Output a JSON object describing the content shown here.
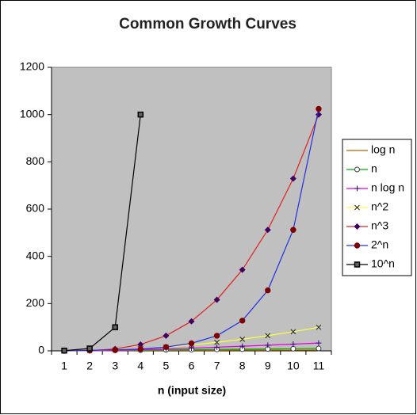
{
  "chart_data": {
    "type": "line",
    "title": "Common Growth Curves",
    "x_label": "n (input size)",
    "categories": [
      "1",
      "2",
      "3",
      "4",
      "5",
      "6",
      "7",
      "8",
      "9",
      "10",
      "11"
    ],
    "ylim": [
      0,
      1200
    ],
    "yticks": [
      0,
      200,
      400,
      600,
      800,
      1000,
      1200
    ],
    "plot_background": "#c0c0c0",
    "legend": "right",
    "series": [
      {
        "name": "log n",
        "color": "#c06000",
        "marker": "none",
        "marker_color": "#c06000",
        "values": [
          null,
          0,
          1,
          1.58,
          2,
          2.32,
          2.58,
          2.81,
          3,
          3.17,
          3.32
        ]
      },
      {
        "name": "n",
        "color": "#00b000",
        "marker": "circle-open",
        "marker_color": "#404040",
        "values": [
          0,
          1,
          2,
          3,
          4,
          5,
          6,
          7,
          8,
          9,
          10
        ]
      },
      {
        "name": "n log n",
        "color": "#e000e0",
        "marker": "plus",
        "marker_color": "#400080",
        "values": [
          null,
          0,
          2,
          4.75,
          8,
          11.6,
          15.5,
          19.7,
          24,
          28.5,
          33.2
        ]
      },
      {
        "name": "n^2",
        "color": "#ffff40",
        "marker": "x",
        "marker_color": "#202020",
        "values": [
          0,
          1,
          4,
          9,
          16,
          25,
          36,
          49,
          64,
          81,
          100
        ]
      },
      {
        "name": "n^3",
        "color": "#e02020",
        "marker": "diamond",
        "marker_color": "#400060",
        "values": [
          0,
          1,
          8,
          27,
          64,
          125,
          216,
          343,
          512,
          729,
          1000
        ]
      },
      {
        "name": "2^n",
        "color": "#2030e0",
        "marker": "circle",
        "marker_color": "#800000",
        "values": [
          1,
          2,
          4,
          8,
          16,
          32,
          64,
          128,
          256,
          512,
          1024
        ]
      },
      {
        "name": "10^n",
        "color": "#000000",
        "marker": "square",
        "marker_color": "#000000",
        "values": [
          1,
          10,
          100,
          1000,
          null,
          null,
          null,
          null,
          null,
          null,
          null
        ]
      }
    ]
  }
}
